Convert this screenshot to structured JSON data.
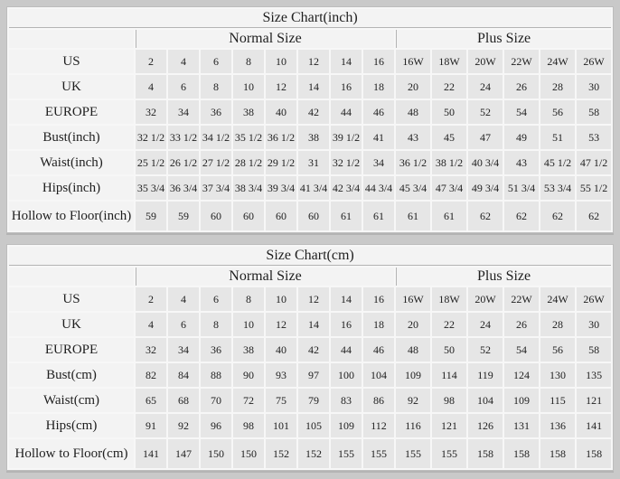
{
  "page_background": "#c9c9c9",
  "colors": {
    "table_background": "#f7f7f7",
    "header_cell_background": "#f3f3f3",
    "data_cell_background": "#e6e6e6",
    "border_dark": "#b3b3b3",
    "text": "#1f1f1f"
  },
  "chart_data": [
    {
      "type": "table",
      "title": "Size Chart(inch)",
      "column_groups": [
        {
          "label": "Normal Size",
          "columns": 8
        },
        {
          "label": "Plus Size",
          "columns": 6
        }
      ],
      "rows": [
        {
          "label": "US",
          "values": [
            "2",
            "4",
            "6",
            "8",
            "10",
            "12",
            "14",
            "16",
            "16W",
            "18W",
            "20W",
            "22W",
            "24W",
            "26W"
          ]
        },
        {
          "label": "UK",
          "values": [
            "4",
            "6",
            "8",
            "10",
            "12",
            "14",
            "16",
            "18",
            "20",
            "22",
            "24",
            "26",
            "28",
            "30"
          ]
        },
        {
          "label": "EUROPE",
          "values": [
            "32",
            "34",
            "36",
            "38",
            "40",
            "42",
            "44",
            "46",
            "48",
            "50",
            "52",
            "54",
            "56",
            "58"
          ]
        },
        {
          "label": "Bust(inch)",
          "values": [
            "32 1/2",
            "33 1/2",
            "34 1/2",
            "35 1/2",
            "36 1/2",
            "38",
            "39 1/2",
            "41",
            "43",
            "45",
            "47",
            "49",
            "51",
            "53"
          ]
        },
        {
          "label": "Waist(inch)",
          "values": [
            "25 1/2",
            "26 1/2",
            "27 1/2",
            "28 1/2",
            "29 1/2",
            "31",
            "32 1/2",
            "34",
            "36 1/2",
            "38 1/2",
            "40 3/4",
            "43",
            "45 1/2",
            "47 1/2"
          ]
        },
        {
          "label": "Hips(inch)",
          "values": [
            "35 3/4",
            "36 3/4",
            "37 3/4",
            "38 3/4",
            "39 3/4",
            "41 3/4",
            "42 3/4",
            "44 3/4",
            "45 3/4",
            "47 3/4",
            "49 3/4",
            "51 3/4",
            "53 3/4",
            "55 1/2"
          ]
        },
        {
          "label": "Hollow to Floor(inch)",
          "values": [
            "59",
            "59",
            "60",
            "60",
            "60",
            "60",
            "61",
            "61",
            "61",
            "61",
            "62",
            "62",
            "62",
            "62"
          ]
        }
      ]
    },
    {
      "type": "table",
      "title": "Size Chart(cm)",
      "column_groups": [
        {
          "label": "Normal Size",
          "columns": 8
        },
        {
          "label": "Plus Size",
          "columns": 6
        }
      ],
      "rows": [
        {
          "label": "US",
          "values": [
            "2",
            "4",
            "6",
            "8",
            "10",
            "12",
            "14",
            "16",
            "16W",
            "18W",
            "20W",
            "22W",
            "24W",
            "26W"
          ]
        },
        {
          "label": "UK",
          "values": [
            "4",
            "6",
            "8",
            "10",
            "12",
            "14",
            "16",
            "18",
            "20",
            "22",
            "24",
            "26",
            "28",
            "30"
          ]
        },
        {
          "label": "EUROPE",
          "values": [
            "32",
            "34",
            "36",
            "38",
            "40",
            "42",
            "44",
            "46",
            "48",
            "50",
            "52",
            "54",
            "56",
            "58"
          ]
        },
        {
          "label": "Bust(cm)",
          "values": [
            "82",
            "84",
            "88",
            "90",
            "93",
            "97",
            "100",
            "104",
            "109",
            "114",
            "119",
            "124",
            "130",
            "135"
          ]
        },
        {
          "label": "Waist(cm)",
          "values": [
            "65",
            "68",
            "70",
            "72",
            "75",
            "79",
            "83",
            "86",
            "92",
            "98",
            "104",
            "109",
            "115",
            "121"
          ]
        },
        {
          "label": "Hips(cm)",
          "values": [
            "91",
            "92",
            "96",
            "98",
            "101",
            "105",
            "109",
            "112",
            "116",
            "121",
            "126",
            "131",
            "136",
            "141"
          ]
        },
        {
          "label": "Hollow to Floor(cm)",
          "values": [
            "141",
            "147",
            "150",
            "150",
            "152",
            "152",
            "155",
            "155",
            "155",
            "155",
            "158",
            "158",
            "158",
            "158"
          ]
        }
      ]
    }
  ]
}
